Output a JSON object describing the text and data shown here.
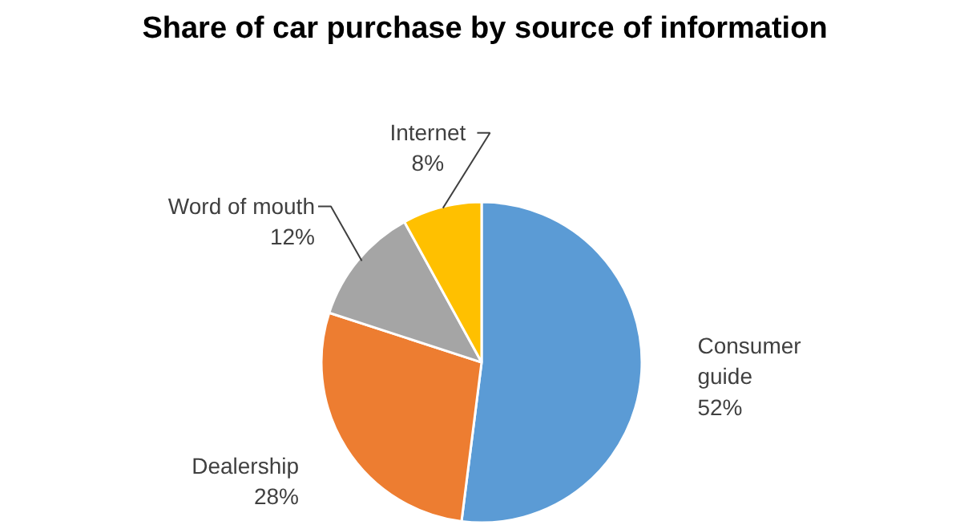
{
  "chart_data": {
    "type": "pie",
    "title": "Share of car purchase by source of information",
    "categories": [
      "Consumer guide",
      "Dealership",
      "Word of mouth",
      "Internet"
    ],
    "values": [
      52,
      28,
      12,
      8
    ],
    "colors": [
      "#5b9bd5",
      "#ed7d31",
      "#a5a5a5",
      "#ffc000"
    ],
    "value_labels": [
      "52%",
      "28%",
      "12%",
      "8%"
    ]
  }
}
